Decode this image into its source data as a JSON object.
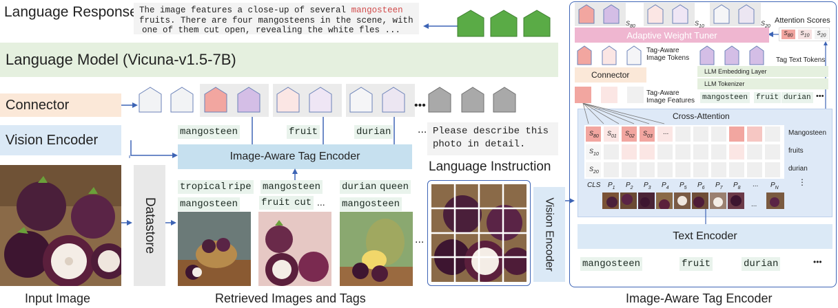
{
  "language_response": {
    "title": "Language Response",
    "text_line1_a": "The image features a close-up of several ",
    "text_line1_highlight": "mangosteen",
    "text_line2": "fruits. There are four mangosteens in the scene, with",
    "text_line3": "one of them cut open, revealing the white fles ..."
  },
  "language_model": {
    "label": "Language Model (Vicuna-v1.5-7B)"
  },
  "connector": {
    "label": "Connector"
  },
  "vision_encoder": {
    "label": "Vision Encoder"
  },
  "datastore": {
    "label": "Datastore"
  },
  "tag_encoder": {
    "label": "Image-Aware Tag Encoder"
  },
  "top_tags": {
    "t1": "mangosteen",
    "t2": "fruit",
    "t3": "durian",
    "ellipsis": "..."
  },
  "instruction": {
    "line1": "Please describe this",
    "line2": "photo in detail.",
    "caption": "Language Instruction"
  },
  "retrieved": {
    "r1a": "tropical",
    "r1b": "ripe",
    "r1c": "mangosteen",
    "r2a": "mangosteen",
    "r2b": "fruit",
    "r2c": "cut",
    "r2d": "...",
    "r3a": "durian",
    "r3b": "queen",
    "r3c": "mangosteen",
    "ellipsis": "..."
  },
  "captions": {
    "input": "Input Image",
    "retrieved": "Retrieved Images and Tags",
    "encoder": "Image-Aware Tag Encoder"
  },
  "panel": {
    "s80": "S",
    "s80sub": "80",
    "s10": "S",
    "s10sub": "10",
    "s20": "S",
    "s20sub": "20",
    "attention_scores": "Attention Scores",
    "awt": "Adaptive Weight Tuner",
    "tag_aware_tokens": "Tag-Aware Image Tokens",
    "tag_text_tokens": "Tag Text Tokens",
    "connector": "Connector",
    "tag_aware_features": "Tag-Aware Image Features",
    "llm_embedding": "LLM Embedding Layer",
    "llm_tokenizer": "LLM Tokenizer",
    "tok1": "mangosteen",
    "tok2": "fruit",
    "tok3": "durian",
    "tok_ellipsis": "•••",
    "cross_attention": "Cross-Attention",
    "row_labels": [
      "Mangosteen",
      "fruits",
      "durian"
    ],
    "row_vdots": "⋮",
    "col_cls": "CLS",
    "col_p": "P",
    "col_subs": [
      "1",
      "2",
      "3",
      "4",
      "5",
      "6",
      "7",
      "8",
      "N"
    ],
    "col_dots": "...",
    "vision_encoder": "Vision Encoder",
    "text_encoder": "Text Encoder",
    "bottom_tags": [
      "mangosteen",
      "fruit",
      "durian"
    ],
    "bottom_ellipsis": "•••",
    "grid_ellipsis": "..."
  },
  "colors": {
    "green_lm": "#e5f0df",
    "orange_conn": "#fbe8d8",
    "blue_ve": "#dbe9f6",
    "tag_enc": "#c6e0ef",
    "pink_token": "#f2a6a0",
    "purple_token": "#d4bee6",
    "green_output": "#5aab46",
    "awt": "#efb6d0",
    "panel_border": "#3d64b5"
  }
}
